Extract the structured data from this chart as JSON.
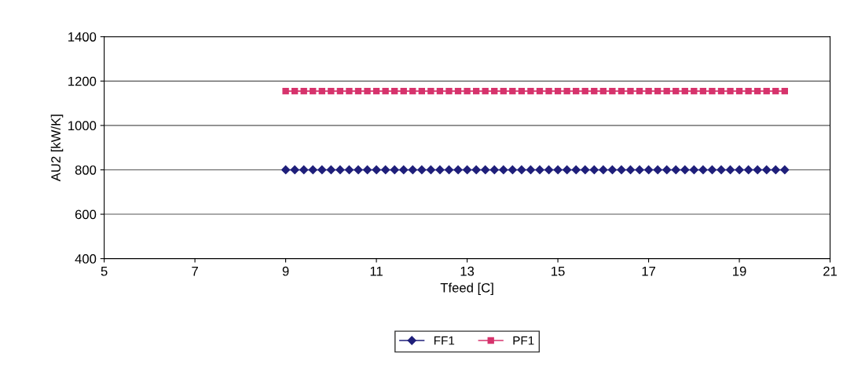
{
  "chart_data": {
    "type": "line",
    "xlabel": "Tfeed [C]",
    "ylabel": "AU2 [kW/K]",
    "x": [
      9,
      9.2,
      9.4,
      9.6,
      9.8,
      10,
      10.2,
      10.4,
      10.6,
      10.8,
      11,
      11.2,
      11.4,
      11.6,
      11.8,
      12,
      12.2,
      12.4,
      12.6,
      12.8,
      13,
      13.2,
      13.4,
      13.6,
      13.8,
      14,
      14.2,
      14.4,
      14.6,
      14.8,
      15,
      15.2,
      15.4,
      15.6,
      15.8,
      16,
      16.2,
      16.4,
      16.6,
      16.8,
      17,
      17.2,
      17.4,
      17.6,
      17.8,
      18,
      18.2,
      18.4,
      18.6,
      18.8,
      19,
      19.2,
      19.4,
      19.6,
      19.8,
      20
    ],
    "series": [
      {
        "name": "FF1",
        "color": "#1f1f7a",
        "marker": "diamond",
        "values": [
          800,
          800,
          800,
          800,
          800,
          800,
          800,
          800,
          800,
          800,
          800,
          800,
          800,
          800,
          800,
          800,
          800,
          800,
          800,
          800,
          800,
          800,
          800,
          800,
          800,
          800,
          800,
          800,
          800,
          800,
          800,
          800,
          800,
          800,
          800,
          800,
          800,
          800,
          800,
          800,
          800,
          800,
          800,
          800,
          800,
          800,
          800,
          800,
          800,
          800,
          800,
          800,
          800,
          800,
          800,
          800
        ]
      },
      {
        "name": "PF1",
        "color": "#d6336c",
        "marker": "square",
        "values": [
          1155,
          1155,
          1155,
          1155,
          1155,
          1155,
          1155,
          1155,
          1155,
          1155,
          1155,
          1155,
          1155,
          1155,
          1155,
          1155,
          1155,
          1155,
          1155,
          1155,
          1155,
          1155,
          1155,
          1155,
          1155,
          1155,
          1155,
          1155,
          1155,
          1155,
          1155,
          1155,
          1155,
          1155,
          1155,
          1155,
          1155,
          1155,
          1155,
          1155,
          1155,
          1155,
          1155,
          1155,
          1155,
          1155,
          1155,
          1155,
          1155,
          1155,
          1155,
          1155,
          1155,
          1155,
          1155,
          1155
        ]
      }
    ],
    "xlim": [
      5,
      21
    ],
    "xticks": [
      5,
      7,
      9,
      11,
      13,
      15,
      17,
      19,
      21
    ],
    "ylim": [
      400,
      1400
    ],
    "yticks": [
      400,
      600,
      800,
      1000,
      1200,
      1400
    ],
    "grid": "y",
    "legend": "bottom"
  }
}
